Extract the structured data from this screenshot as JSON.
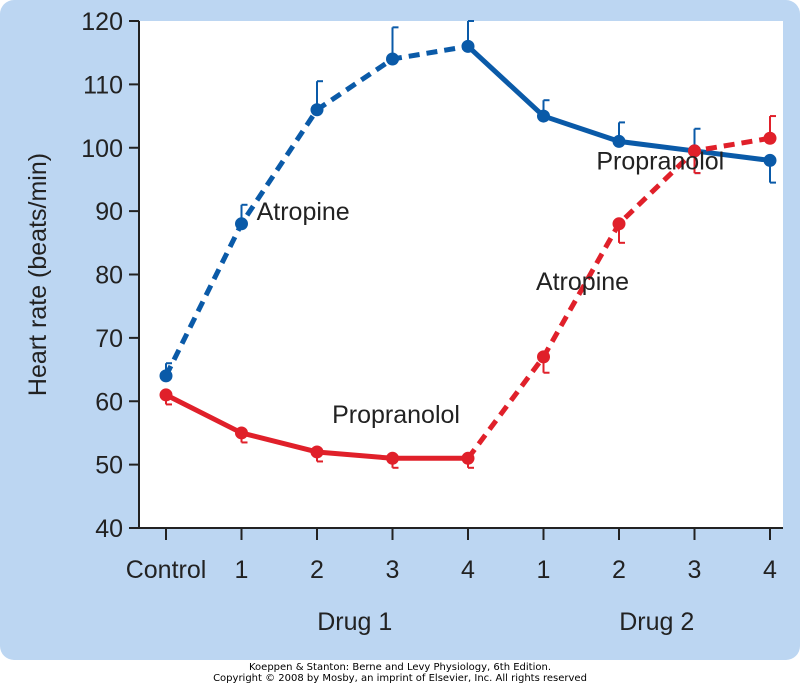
{
  "chart_data": {
    "type": "line",
    "title": "",
    "xlabel": "",
    "ylabel": "Heart rate (beats/min)",
    "ylim": [
      40,
      120
    ],
    "yticks": [
      40,
      50,
      60,
      70,
      80,
      90,
      100,
      110,
      120
    ],
    "grid": false,
    "categories": [
      "Control",
      "1",
      "2",
      "3",
      "4",
      "1",
      "2",
      "3",
      "4"
    ],
    "groups": [
      {
        "label": "Drug 1",
        "from": 1,
        "to": 4
      },
      {
        "label": "Drug 2",
        "from": 5,
        "to": 8
      }
    ],
    "colors": {
      "blue": "#0a5aa8",
      "red": "#e0202a",
      "frame": "#bcd6f2",
      "plot_bg": "#ffffff"
    },
    "series": [
      {
        "color": "blue",
        "points": [
          {
            "x": 0,
            "y": 64,
            "err": 2
          },
          {
            "x": 1,
            "y": 88,
            "err": 3
          },
          {
            "x": 2,
            "y": 106,
            "err": 4.5
          },
          {
            "x": 3,
            "y": 114,
            "err": 5
          },
          {
            "x": 4,
            "y": 116,
            "err": 4
          },
          {
            "x": 5,
            "y": 105,
            "err": 2.5
          },
          {
            "x": 6,
            "y": 101,
            "err": 3
          },
          {
            "x": 7,
            "y": 99.5,
            "err": 3.5,
            "err_dir": "both"
          },
          {
            "x": 8,
            "y": 98,
            "err": 3.5,
            "err_dir": "down"
          }
        ],
        "segments": [
          {
            "from": 0,
            "to": 4,
            "style": "dashed",
            "drug": "Atropine"
          },
          {
            "from": 4,
            "to": 8,
            "style": "solid",
            "drug": "Propranolol"
          }
        ]
      },
      {
        "color": "red",
        "points": [
          {
            "x": 0,
            "y": 61,
            "err": 1.5,
            "err_dir": "down"
          },
          {
            "x": 1,
            "y": 55,
            "err": 1.5,
            "err_dir": "down"
          },
          {
            "x": 2,
            "y": 52,
            "err": 1.5,
            "err_dir": "down"
          },
          {
            "x": 3,
            "y": 51,
            "err": 1.5,
            "err_dir": "down"
          },
          {
            "x": 4,
            "y": 51,
            "err": 1.5,
            "err_dir": "down"
          },
          {
            "x": 5,
            "y": 67,
            "err": 2.5,
            "err_dir": "down"
          },
          {
            "x": 6,
            "y": 88,
            "err": 3,
            "err_dir": "down"
          },
          {
            "x": 7,
            "y": 99.5,
            "err": 3.5,
            "err_dir": "down"
          },
          {
            "x": 8,
            "y": 101.5,
            "err": 3.5
          }
        ],
        "segments": [
          {
            "from": 0,
            "to": 4,
            "style": "solid",
            "drug": "Propranolol"
          },
          {
            "from": 4,
            "to": 8,
            "style": "dashed",
            "drug": "Atropine"
          }
        ]
      }
    ],
    "annotations": [
      {
        "text": "Atropine",
        "x": 1.2,
        "y": 90
      },
      {
        "text": "Propranolol",
        "x": 5.7,
        "y": 98
      },
      {
        "text": "Atropine",
        "x": 4.9,
        "y": 79
      },
      {
        "text": "Propranolol",
        "x": 2.2,
        "y": 58
      }
    ]
  },
  "credit": {
    "line1": "Koeppen & Stanton: Berne and Levy Physiology, 6th Edition.",
    "line2": "Copyright © 2008 by Mosby, an imprint of Elsevier, Inc. All rights reserved"
  }
}
